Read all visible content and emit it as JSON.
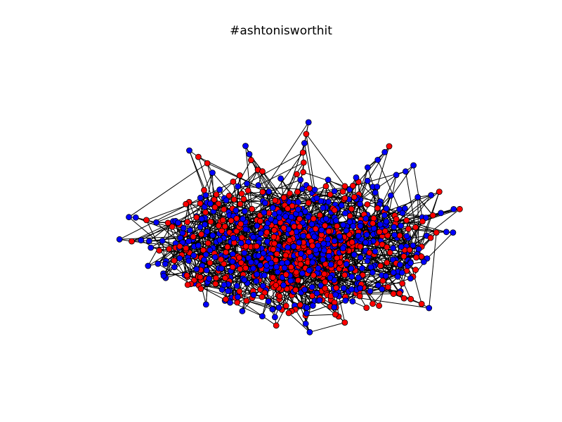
{
  "title": "#ashtonisworthit",
  "graph": {
    "node_colors": {
      "red": "#ff0000",
      "blue": "#0000ff"
    },
    "node_outline_color": "#000000",
    "edge_color": "#000000",
    "background_color": "#ffffff",
    "node_color_groups": [
      "red",
      "blue"
    ]
  }
}
